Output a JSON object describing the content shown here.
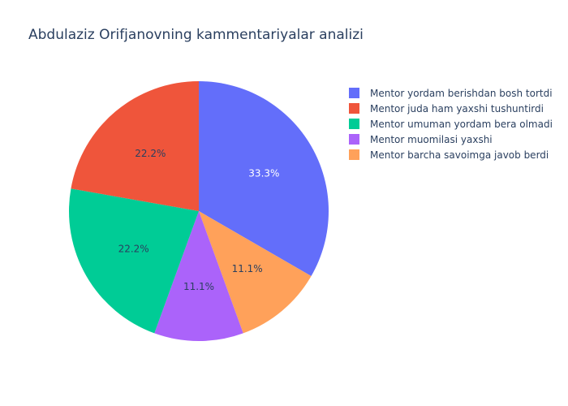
{
  "chart_data": {
    "type": "pie",
    "title": "Abdulaziz Orifjanovning kammentariyalar analizi",
    "sort_order": "descending",
    "direction": "clockwise",
    "start_angle_deg": 90,
    "legend_position": "right",
    "slices": [
      {
        "label": "Mentor yordam berishdan bosh tortdi",
        "value": 3,
        "percent_label": "33.3%",
        "color": "#636efa",
        "text_color": "#ffffff"
      },
      {
        "label": "Mentor barcha savoimga javob berdi",
        "value": 1,
        "percent_label": "11.1%",
        "color": "#ffa15a",
        "text_color": "#2a3f5f"
      },
      {
        "label": "Mentor muomilasi yaxshi",
        "value": 1,
        "percent_label": "11.1%",
        "color": "#ab63fa",
        "text_color": "#2a3f5f"
      },
      {
        "label": "Mentor umuman yordam bera olmadi",
        "value": 2,
        "percent_label": "22.2%",
        "color": "#00cc96",
        "text_color": "#2a3f5f"
      },
      {
        "label": "Mentor juda ham yaxshi tushuntirdi",
        "value": 2,
        "percent_label": "22.2%",
        "color": "#ef553b",
        "text_color": "#2a3f5f"
      }
    ],
    "legend_entries": [
      {
        "label": "Mentor yordam berishdan bosh tortdi",
        "color": "#636efa"
      },
      {
        "label": "Mentor juda ham yaxshi tushuntirdi",
        "color": "#ef553b"
      },
      {
        "label": "Mentor umuman yordam bera olmadi",
        "color": "#00cc96"
      },
      {
        "label": "Mentor muomilasi yaxshi",
        "color": "#ab63fa"
      },
      {
        "label": "Mentor barcha savoimga javob berdi",
        "color": "#ffa15a"
      }
    ]
  }
}
